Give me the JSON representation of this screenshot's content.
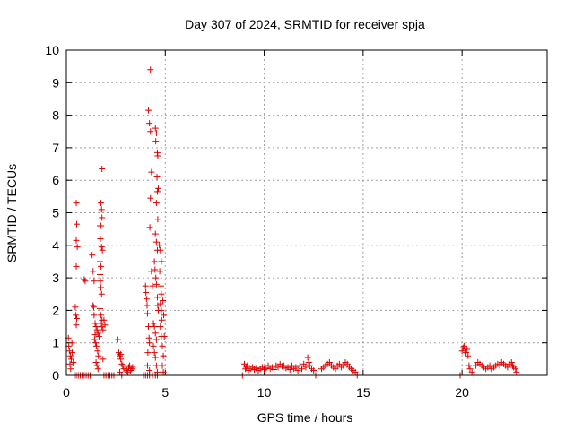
{
  "chart_data": {
    "type": "scatter",
    "title": "Day 307 of 2024, SRMTID for receiver spja",
    "xlabel": "GPS time / hours",
    "ylabel": "SRMTID / TECUs",
    "xlim": [
      0,
      24.3
    ],
    "ylim": [
      0,
      10
    ],
    "x_ticks": [
      0,
      5,
      10,
      15,
      20
    ],
    "y_ticks": [
      0,
      1,
      2,
      3,
      4,
      5,
      6,
      7,
      8,
      9,
      10
    ],
    "grid": true,
    "marker": "+",
    "series": [
      {
        "name": "SRMTID",
        "color": "#e00000",
        "points": [
          [
            0.1,
            1.15
          ],
          [
            0.12,
            0.9
          ],
          [
            0.15,
            0.75
          ],
          [
            0.2,
            0.6
          ],
          [
            0.25,
            0.5
          ],
          [
            0.3,
            0.7
          ],
          [
            0.18,
            0.35
          ],
          [
            0.22,
            0.2
          ],
          [
            0.28,
            1.0
          ],
          [
            0.35,
            0.4
          ],
          [
            0.4,
            0.0
          ],
          [
            0.5,
            0.0
          ],
          [
            0.6,
            0.0
          ],
          [
            0.7,
            0.0
          ],
          [
            0.8,
            0.0
          ],
          [
            0.9,
            0.0
          ],
          [
            1.0,
            0.0
          ],
          [
            1.1,
            0.0
          ],
          [
            1.2,
            0.0
          ],
          [
            0.5,
            5.3
          ],
          [
            0.52,
            4.65
          ],
          [
            0.5,
            4.15
          ],
          [
            0.55,
            3.95
          ],
          [
            0.5,
            3.35
          ],
          [
            0.45,
            2.1
          ],
          [
            0.48,
            1.85
          ],
          [
            0.52,
            1.75
          ],
          [
            0.5,
            1.55
          ],
          [
            0.9,
            2.95
          ],
          [
            0.95,
            2.9
          ],
          [
            1.3,
            3.7
          ],
          [
            1.35,
            3.2
          ],
          [
            1.4,
            2.9
          ],
          [
            1.35,
            2.15
          ],
          [
            1.38,
            2.1
          ],
          [
            1.4,
            1.85
          ],
          [
            1.45,
            1.6
          ],
          [
            1.5,
            1.5
          ],
          [
            1.55,
            1.4
          ],
          [
            1.6,
            1.3
          ],
          [
            1.42,
            1.1
          ],
          [
            1.48,
            1.0
          ],
          [
            1.52,
            0.9
          ],
          [
            1.58,
            0.75
          ],
          [
            1.62,
            0.6
          ],
          [
            1.5,
            0.4
          ],
          [
            1.55,
            0.3
          ],
          [
            1.6,
            0.2
          ],
          [
            1.45,
            1.25
          ],
          [
            1.65,
            1.2
          ],
          [
            1.7,
            3.1
          ],
          [
            1.72,
            2.9
          ],
          [
            1.75,
            2.7
          ],
          [
            1.78,
            2.5
          ],
          [
            1.7,
            2.05
          ],
          [
            1.75,
            1.85
          ],
          [
            1.8,
            1.7
          ],
          [
            1.72,
            1.6
          ],
          [
            1.8,
            1.5
          ],
          [
            1.85,
            1.4
          ],
          [
            1.8,
            6.35
          ],
          [
            1.75,
            5.3
          ],
          [
            1.78,
            5.1
          ],
          [
            1.8,
            4.85
          ],
          [
            1.7,
            4.6
          ],
          [
            1.75,
            4.6
          ],
          [
            1.72,
            4.2
          ],
          [
            1.78,
            3.95
          ],
          [
            1.82,
            3.85
          ],
          [
            1.7,
            3.5
          ],
          [
            1.75,
            3.35
          ],
          [
            1.9,
            1.7
          ],
          [
            1.95,
            1.55
          ],
          [
            1.85,
            0.5
          ],
          [
            1.9,
            0.0
          ],
          [
            2.0,
            0.0
          ],
          [
            2.1,
            0.0
          ],
          [
            2.2,
            0.0
          ],
          [
            2.3,
            0.0
          ],
          [
            2.4,
            0.0
          ],
          [
            2.6,
            1.1
          ],
          [
            2.65,
            0.7
          ],
          [
            2.7,
            0.6
          ],
          [
            2.75,
            0.5
          ],
          [
            2.8,
            0.35
          ],
          [
            2.85,
            0.3
          ],
          [
            2.9,
            0.2
          ],
          [
            2.7,
            0.1
          ],
          [
            2.8,
            0.0
          ],
          [
            2.75,
            0.65
          ],
          [
            3.0,
            0.2
          ],
          [
            3.05,
            0.15
          ],
          [
            3.1,
            0.1
          ],
          [
            3.15,
            0.25
          ],
          [
            3.2,
            0.3
          ],
          [
            3.25,
            0.15
          ],
          [
            3.3,
            0.2
          ],
          [
            3.35,
            0.25
          ],
          [
            3.9,
            0.0
          ],
          [
            4.0,
            0.0
          ],
          [
            4.1,
            0.0
          ],
          [
            4.2,
            0.0
          ],
          [
            4.35,
            0.0
          ],
          [
            4.5,
            0.0
          ],
          [
            4.6,
            0.0
          ],
          [
            4.0,
            2.75
          ],
          [
            4.02,
            2.55
          ],
          [
            4.05,
            2.35
          ],
          [
            4.08,
            2.15
          ],
          [
            4.1,
            1.9
          ],
          [
            4.15,
            1.5
          ],
          [
            4.18,
            1.15
          ],
          [
            4.2,
            1.0
          ],
          [
            4.12,
            0.7
          ],
          [
            4.1,
            0.3
          ],
          [
            4.2,
            0.15
          ],
          [
            4.25,
            9.4
          ],
          [
            4.15,
            8.15
          ],
          [
            4.2,
            7.75
          ],
          [
            4.25,
            7.5
          ],
          [
            4.3,
            6.25
          ],
          [
            4.25,
            5.45
          ],
          [
            4.22,
            4.55
          ],
          [
            4.3,
            3.2
          ],
          [
            4.35,
            2.75
          ],
          [
            4.5,
            7.6
          ],
          [
            4.55,
            7.45
          ],
          [
            4.52,
            7.2
          ],
          [
            4.6,
            6.85
          ],
          [
            4.62,
            6.75
          ],
          [
            4.58,
            6.1
          ],
          [
            4.65,
            5.75
          ],
          [
            4.6,
            5.65
          ],
          [
            4.55,
            5.3
          ],
          [
            4.62,
            4.8
          ],
          [
            4.5,
            4.35
          ],
          [
            4.55,
            4.1
          ],
          [
            4.6,
            3.85
          ],
          [
            4.45,
            3.5
          ],
          [
            4.48,
            3.25
          ],
          [
            4.52,
            3.0
          ],
          [
            4.55,
            2.8
          ],
          [
            4.6,
            2.4
          ],
          [
            4.62,
            2.15
          ],
          [
            4.65,
            2.0
          ],
          [
            4.4,
            1.6
          ],
          [
            4.45,
            1.5
          ],
          [
            4.5,
            1.3
          ],
          [
            4.55,
            1.1
          ],
          [
            4.4,
            0.9
          ],
          [
            4.45,
            0.7
          ],
          [
            4.5,
            0.55
          ],
          [
            4.55,
            0.3
          ],
          [
            4.6,
            0.1
          ],
          [
            4.7,
            4.0
          ],
          [
            4.75,
            3.85
          ],
          [
            4.8,
            3.5
          ],
          [
            4.72,
            3.2
          ],
          [
            4.78,
            2.75
          ],
          [
            4.8,
            2.5
          ],
          [
            4.75,
            2.2
          ],
          [
            4.8,
            2.0
          ],
          [
            4.82,
            1.7
          ],
          [
            4.75,
            1.5
          ],
          [
            4.8,
            1.2
          ],
          [
            4.85,
            0.9
          ],
          [
            4.9,
            0.6
          ],
          [
            4.85,
            0.3
          ],
          [
            4.9,
            0.1
          ],
          [
            4.95,
            1.2
          ],
          [
            4.92,
            1.85
          ],
          [
            4.88,
            2.3
          ],
          [
            8.9,
            0.0
          ],
          [
            9.0,
            0.35
          ],
          [
            9.05,
            0.2
          ],
          [
            9.1,
            0.25
          ],
          [
            9.15,
            0.3
          ],
          [
            9.2,
            0.15
          ],
          [
            9.3,
            0.2
          ],
          [
            9.4,
            0.25
          ],
          [
            9.5,
            0.18
          ],
          [
            9.6,
            0.22
          ],
          [
            9.7,
            0.15
          ],
          [
            9.8,
            0.2
          ],
          [
            9.9,
            0.25
          ],
          [
            10.0,
            0.18
          ],
          [
            10.1,
            0.22
          ],
          [
            10.2,
            0.3
          ],
          [
            10.3,
            0.2
          ],
          [
            10.4,
            0.25
          ],
          [
            10.5,
            0.18
          ],
          [
            10.6,
            0.3
          ],
          [
            10.7,
            0.25
          ],
          [
            10.8,
            0.35
          ],
          [
            10.9,
            0.28
          ],
          [
            11.0,
            0.3
          ],
          [
            11.1,
            0.22
          ],
          [
            11.2,
            0.25
          ],
          [
            11.3,
            0.18
          ],
          [
            11.4,
            0.3
          ],
          [
            11.5,
            0.2
          ],
          [
            11.6,
            0.25
          ],
          [
            11.7,
            0.15
          ],
          [
            11.8,
            0.3
          ],
          [
            11.9,
            0.2
          ],
          [
            12.0,
            0.35
          ],
          [
            12.1,
            0.25
          ],
          [
            12.2,
            0.55
          ],
          [
            12.25,
            0.4
          ],
          [
            12.3,
            0.3
          ],
          [
            12.4,
            0.2
          ],
          [
            12.5,
            0.15
          ],
          [
            12.6,
            0.0
          ],
          [
            12.9,
            0.2
          ],
          [
            13.0,
            0.25
          ],
          [
            13.1,
            0.3
          ],
          [
            13.2,
            0.35
          ],
          [
            13.3,
            0.4
          ],
          [
            13.4,
            0.3
          ],
          [
            13.5,
            0.25
          ],
          [
            13.6,
            0.2
          ],
          [
            13.7,
            0.3
          ],
          [
            13.8,
            0.35
          ],
          [
            13.9,
            0.25
          ],
          [
            14.0,
            0.3
          ],
          [
            14.1,
            0.4
          ],
          [
            14.2,
            0.35
          ],
          [
            14.3,
            0.25
          ],
          [
            14.4,
            0.2
          ],
          [
            14.5,
            0.15
          ],
          [
            14.6,
            0.1
          ],
          [
            14.7,
            0.0
          ],
          [
            19.9,
            0.0
          ],
          [
            20.0,
            0.75
          ],
          [
            20.05,
            0.85
          ],
          [
            20.1,
            0.9
          ],
          [
            20.15,
            0.8
          ],
          [
            20.2,
            0.7
          ],
          [
            20.25,
            0.8
          ],
          [
            20.3,
            0.6
          ],
          [
            20.35,
            0.3
          ],
          [
            20.4,
            0.2
          ],
          [
            20.5,
            0.1
          ],
          [
            20.6,
            0.0
          ],
          [
            20.7,
            0.3
          ],
          [
            20.8,
            0.4
          ],
          [
            20.9,
            0.35
          ],
          [
            21.0,
            0.3
          ],
          [
            21.1,
            0.25
          ],
          [
            21.2,
            0.2
          ],
          [
            21.3,
            0.25
          ],
          [
            21.4,
            0.3
          ],
          [
            21.5,
            0.2
          ],
          [
            21.6,
            0.25
          ],
          [
            21.7,
            0.3
          ],
          [
            21.8,
            0.35
          ],
          [
            21.9,
            0.3
          ],
          [
            22.0,
            0.4
          ],
          [
            22.1,
            0.35
          ],
          [
            22.2,
            0.3
          ],
          [
            22.3,
            0.25
          ],
          [
            22.4,
            0.35
          ],
          [
            22.5,
            0.4
          ],
          [
            22.55,
            0.3
          ],
          [
            22.6,
            0.25
          ],
          [
            22.7,
            0.2
          ],
          [
            22.75,
            0.1
          ]
        ]
      }
    ]
  }
}
